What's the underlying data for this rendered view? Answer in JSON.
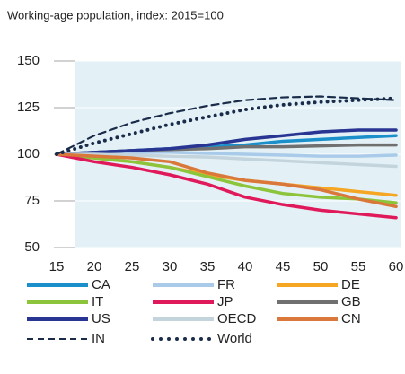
{
  "chart_data": {
    "type": "line",
    "title": "Working-age population, index: 2015=100",
    "x": [
      15,
      20,
      25,
      30,
      35,
      40,
      45,
      50,
      55,
      60
    ],
    "xlim": [
      15,
      60
    ],
    "xticks": [
      15,
      20,
      25,
      30,
      35,
      40,
      45,
      50,
      55,
      60
    ],
    "ylim": [
      50,
      150
    ],
    "yticks": [
      50,
      75,
      100,
      125,
      150
    ],
    "grid": true,
    "series": [
      {
        "name": "CA",
        "color": "#1b8fc9",
        "style": "solid",
        "values": [
          100,
          101,
          102,
          103,
          104,
          105,
          107,
          108,
          109,
          110
        ]
      },
      {
        "name": "FR",
        "color": "#a9cbe9",
        "style": "solid",
        "values": [
          100,
          100.5,
          101,
          101,
          100.5,
          100,
          99.5,
          99,
          99,
          99.5
        ]
      },
      {
        "name": "DE",
        "color": "#f5a623",
        "style": "solid",
        "values": [
          100,
          98,
          96,
          93,
          89,
          86,
          84,
          82,
          80,
          78
        ]
      },
      {
        "name": "IT",
        "color": "#8cc43c",
        "style": "solid",
        "values": [
          100,
          98,
          96,
          93,
          88,
          83,
          79,
          77,
          76,
          74
        ]
      },
      {
        "name": "JP",
        "color": "#e0195a",
        "style": "solid",
        "values": [
          100,
          96,
          93,
          89,
          84,
          77,
          73,
          70,
          68,
          66
        ]
      },
      {
        "name": "GB",
        "color": "#707070",
        "style": "solid",
        "values": [
          100,
          101,
          102,
          102.5,
          103,
          104,
          104,
          104.5,
          105,
          105
        ]
      },
      {
        "name": "US",
        "color": "#283593",
        "style": "solid",
        "values": [
          100,
          101,
          102,
          103,
          105,
          108,
          110,
          112,
          113,
          113
        ]
      },
      {
        "name": "OECD",
        "color": "#c4d4dc",
        "style": "solid",
        "values": [
          100,
          100,
          99.5,
          99,
          98.5,
          97.5,
          96.5,
          95.5,
          94.5,
          93.5
        ]
      },
      {
        "name": "CN",
        "color": "#d9783a",
        "style": "solid",
        "values": [
          100,
          99,
          98,
          96,
          90,
          86,
          84,
          81,
          76,
          72
        ]
      },
      {
        "name": "IN",
        "color": "#1a2c4a",
        "style": "dashed",
        "values": [
          100,
          110,
          117,
          122,
          126,
          129,
          130.5,
          131,
          130,
          129
        ]
      },
      {
        "name": "World",
        "color": "#1a2c4a",
        "style": "dotted",
        "values": [
          100,
          106,
          111,
          116,
          120,
          124,
          126.5,
          128,
          129,
          130
        ]
      }
    ]
  }
}
